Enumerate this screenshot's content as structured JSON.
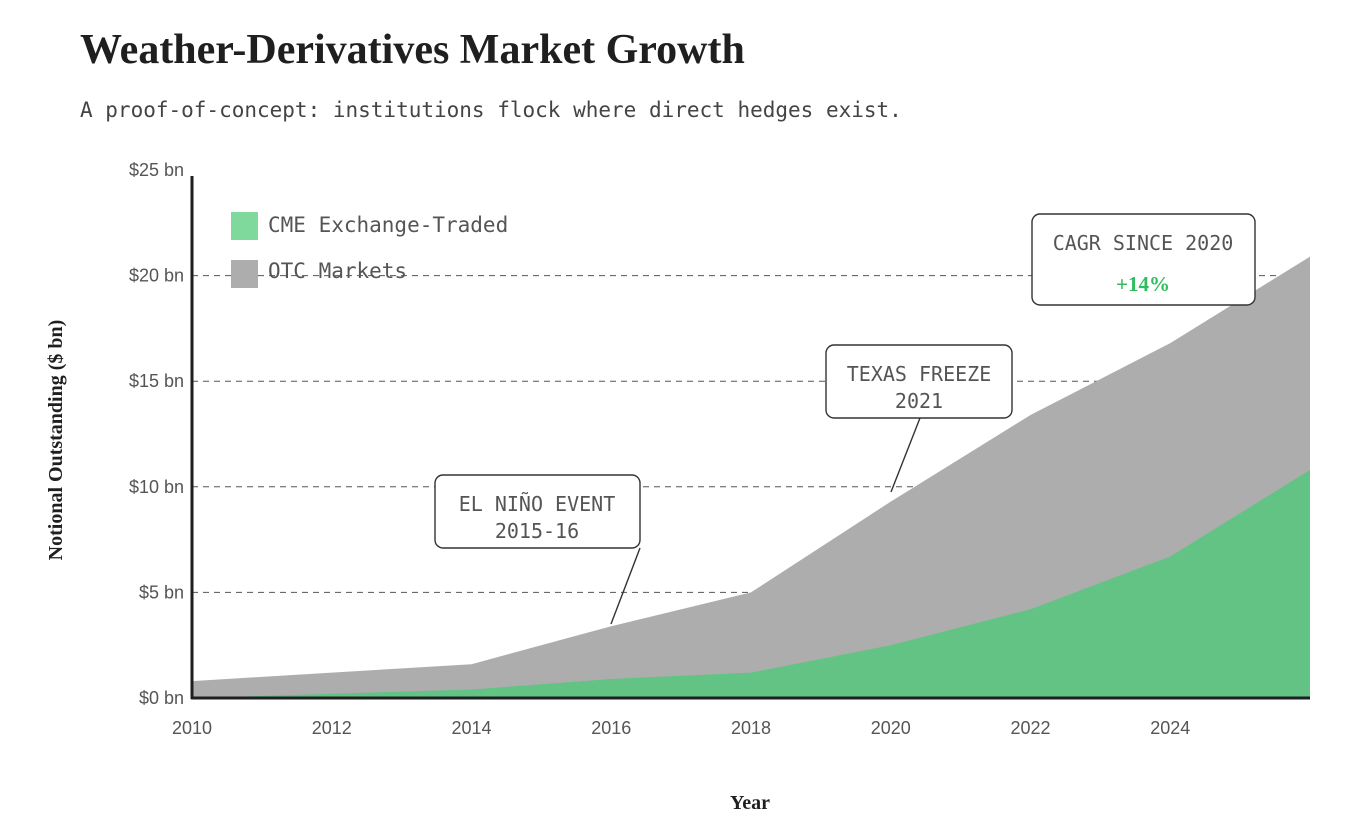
{
  "title": "Weather-Derivatives Market Growth",
  "subtitle": "A proof-of-concept: institutions flock where direct hedges exist.",
  "colors": {
    "cme": "#62c384",
    "cme_legend": "#7fd89c",
    "otc": "#adadad",
    "accent": "#2ebd5f",
    "axis": "#1f1f1f",
    "grid": "#555555"
  },
  "chart_data": {
    "type": "area",
    "stacked": false,
    "xlabel": "Year",
    "ylabel": "Notional Outstanding ($ bn)",
    "xlim": [
      2010,
      2026
    ],
    "ylim": [
      0,
      25
    ],
    "x_ticks": [
      2010,
      2012,
      2014,
      2016,
      2018,
      2020,
      2022,
      2024
    ],
    "x_tick_labels": [
      "2010",
      "2012",
      "2014",
      "2016",
      "2018",
      "2020",
      "2022",
      "2024"
    ],
    "y_ticks": [
      0,
      5,
      10,
      15,
      20,
      25
    ],
    "y_tick_labels": [
      "$0 bn",
      "$5 bn",
      "$10 bn",
      "$15 bn",
      "$20 bn",
      "$25 bn"
    ],
    "grid": "horizontal dashed",
    "legend_position": "top-left",
    "x": [
      2010,
      2012,
      2014,
      2016,
      2018,
      2020,
      2022,
      2024,
      2026
    ],
    "series": [
      {
        "name": "CME Exchange-Traded",
        "values": [
          0.0,
          0.2,
          0.4,
          0.9,
          1.2,
          2.5,
          4.2,
          6.7,
          10.8
        ]
      },
      {
        "name": "OTC Markets",
        "values": [
          0.8,
          1.2,
          1.6,
          3.4,
          5.0,
          9.3,
          13.4,
          16.8,
          20.9
        ]
      }
    ],
    "annotations": [
      {
        "lines": [
          "EL NIÑO EVENT",
          "2015-16"
        ],
        "x": 2015.9,
        "y": 3.3
      },
      {
        "lines": [
          "TEXAS FREEZE",
          "2021"
        ],
        "x": 2020.0,
        "y": 9.3
      },
      {
        "title": "CAGR SINCE 2020",
        "value": "+14%"
      }
    ]
  }
}
